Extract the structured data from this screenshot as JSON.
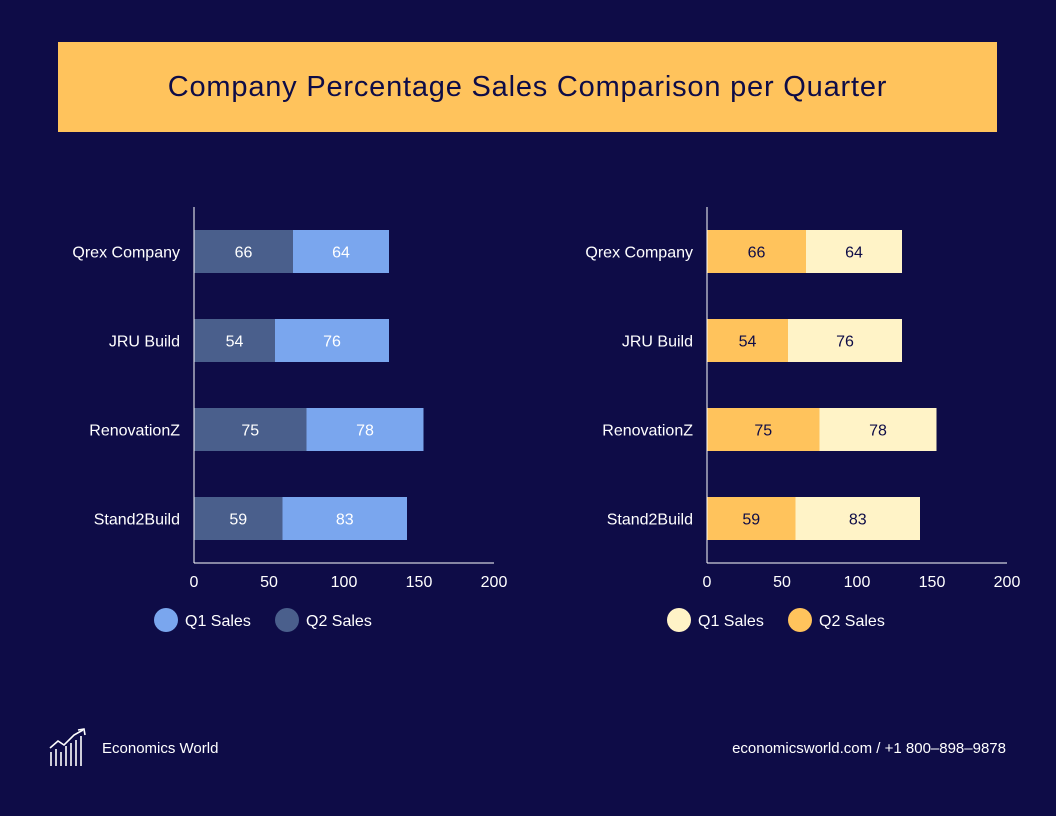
{
  "title": "Company Percentage Sales Comparison per Quarter",
  "colors": {
    "background": "#0e0c47",
    "banner": "#ffc35c",
    "left_q1": "#7aa6ee",
    "left_q2": "#4a5f8c",
    "right_q1": "#fff3c7",
    "right_q2": "#ffc35c"
  },
  "chart_data": [
    {
      "type": "bar",
      "orientation": "horizontal",
      "stacked": true,
      "title": "",
      "categories": [
        "Qrex Company",
        "JRU Build",
        "RenovationZ",
        "Stand2Build"
      ],
      "series": [
        {
          "name": "Q2 Sales",
          "values": [
            66,
            54,
            75,
            59
          ],
          "color": "#4a5f8c"
        },
        {
          "name": "Q1 Sales",
          "values": [
            64,
            76,
            78,
            83
          ],
          "color": "#7aa6ee"
        }
      ],
      "legend": [
        "Q1 Sales",
        "Q2 Sales"
      ],
      "xlim": [
        0,
        200
      ],
      "xticks": [
        0,
        50,
        100,
        150,
        200
      ],
      "xlabel": "",
      "ylabel": ""
    },
    {
      "type": "bar",
      "orientation": "horizontal",
      "stacked": true,
      "title": "",
      "categories": [
        "Qrex Company",
        "JRU Build",
        "RenovationZ",
        "Stand2Build"
      ],
      "series": [
        {
          "name": "Q2 Sales",
          "values": [
            66,
            54,
            75,
            59
          ],
          "color": "#ffc35c"
        },
        {
          "name": "Q1 Sales",
          "values": [
            64,
            76,
            78,
            83
          ],
          "color": "#fff3c7"
        }
      ],
      "legend": [
        "Q1 Sales",
        "Q2 Sales"
      ],
      "xlim": [
        0,
        200
      ],
      "xticks": [
        0,
        50,
        100,
        150,
        200
      ],
      "xlabel": "",
      "ylabel": ""
    }
  ],
  "footer": {
    "brand": "Economics World",
    "brand_icon": "growth-chart-icon",
    "contact": "economicsworld.com / +1 800–898–9878"
  }
}
